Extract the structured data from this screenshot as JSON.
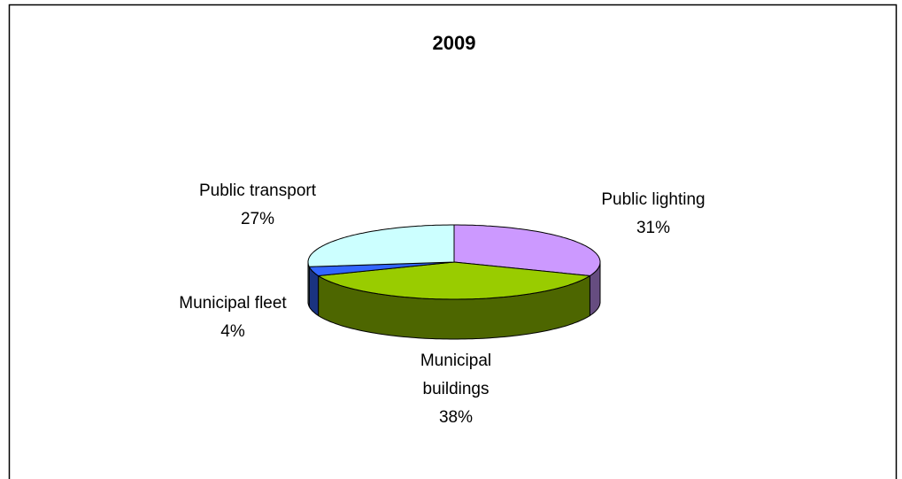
{
  "chart_data": {
    "type": "pie3d",
    "title": "2009",
    "categories": [
      "Public lighting",
      "Municipal buildings",
      "Municipal fleet",
      "Public transport"
    ],
    "values": [
      31,
      38,
      4,
      27
    ],
    "value_labels": [
      "31%",
      "38%",
      "4%",
      "27%"
    ],
    "colors": [
      "#cc99ff",
      "#99cc00",
      "#3366ff",
      "#ccffff"
    ]
  }
}
